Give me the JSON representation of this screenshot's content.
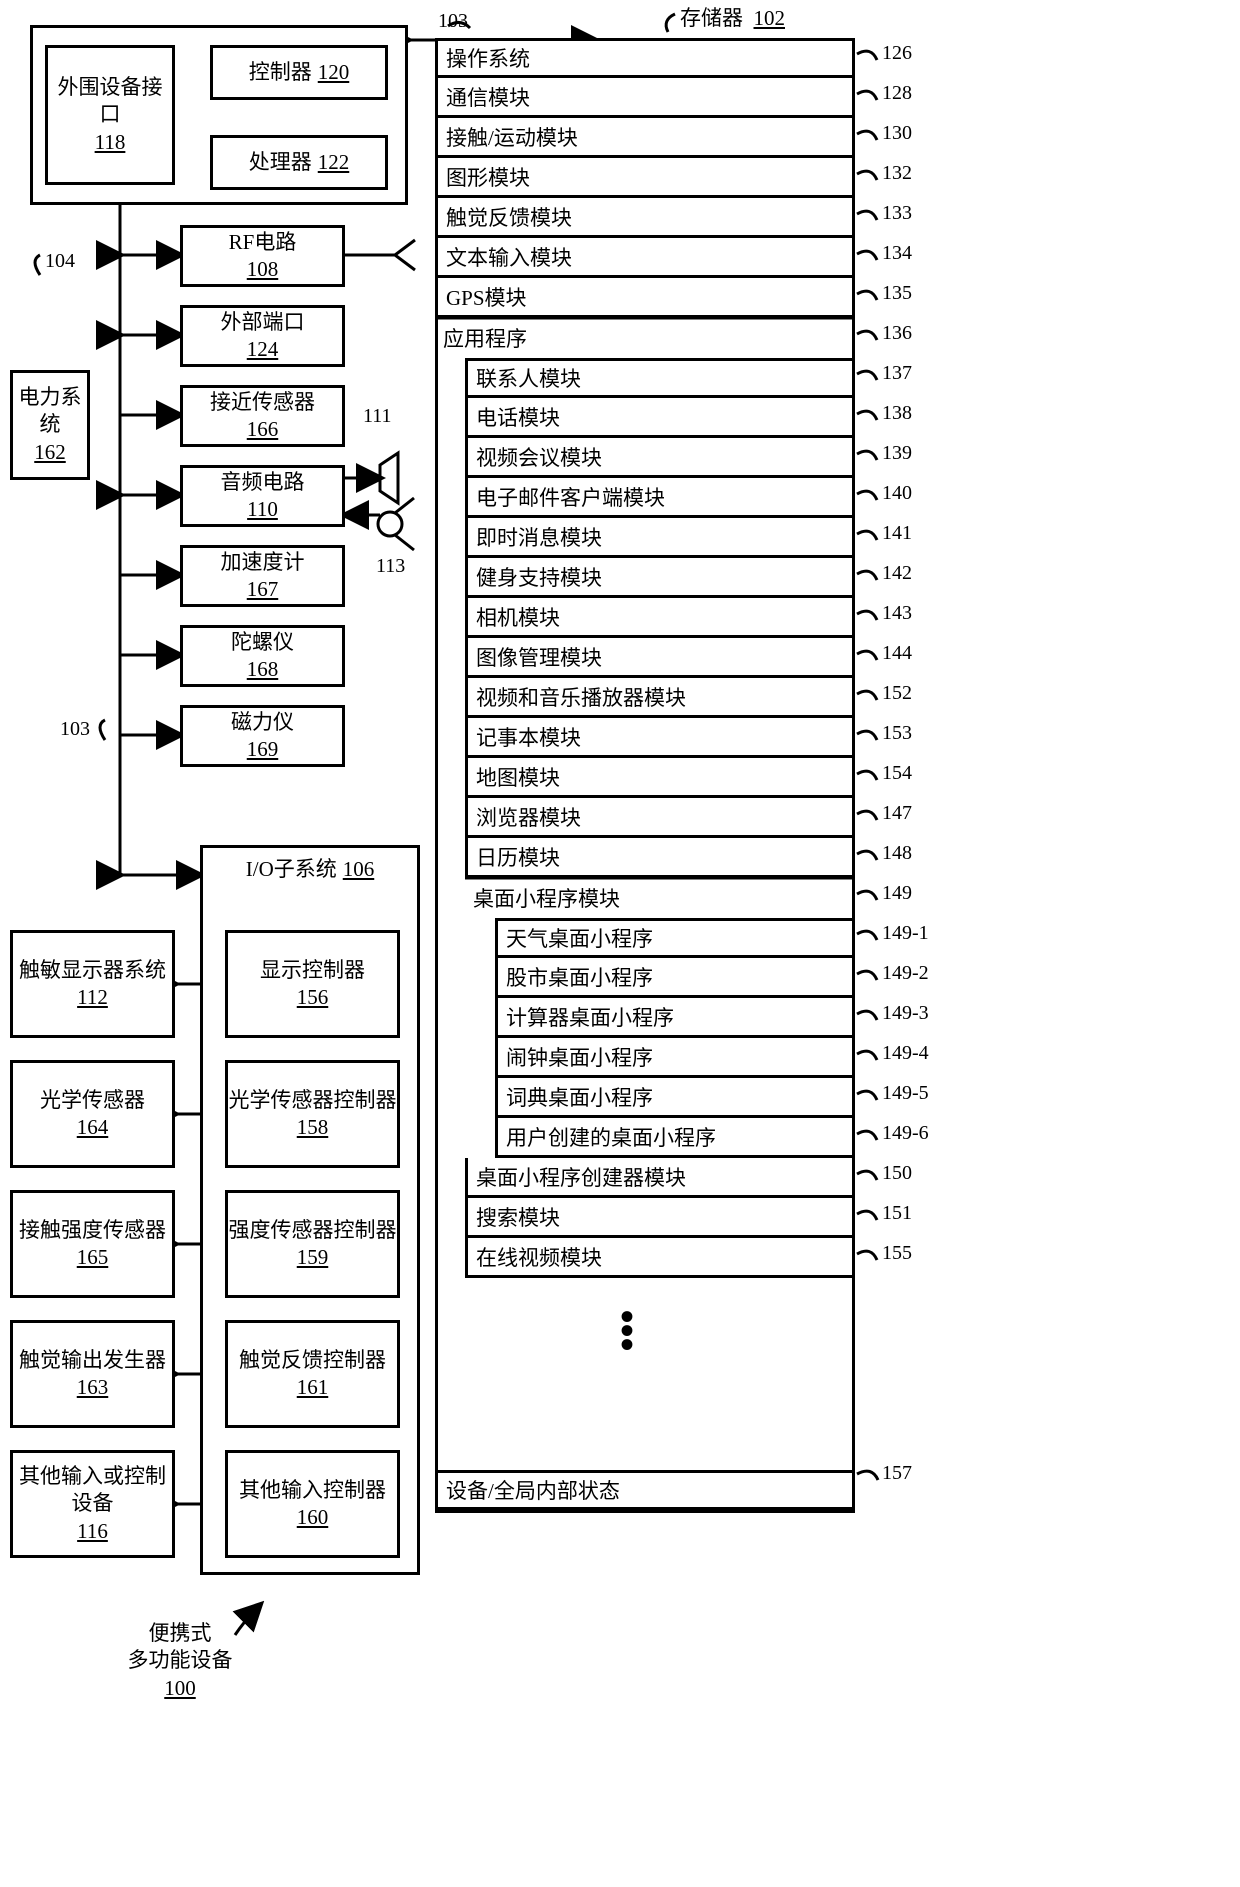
{
  "title": {
    "line1": "便携式",
    "line2": "多功能设备",
    "num": "100"
  },
  "top_left_group": {
    "outer_num": "104",
    "bus_label": "103",
    "peripheral": {
      "label": "外围设备接口",
      "num": "118"
    },
    "controller": {
      "label": "控制器",
      "num": "120"
    },
    "processor": {
      "label": "处理器",
      "num": "122"
    }
  },
  "power": {
    "label": "电力系统",
    "num": "162"
  },
  "stacked_blocks": [
    {
      "label": "RF电路",
      "num": "108"
    },
    {
      "label": "外部端口",
      "num": "124"
    },
    {
      "label": "接近传感器",
      "num": "166"
    },
    {
      "label": "音频电路",
      "num": "110"
    },
    {
      "label": "加速度计",
      "num": "167"
    },
    {
      "label": "陀螺仪",
      "num": "168"
    },
    {
      "label": "磁力仪",
      "num": "169"
    }
  ],
  "audio_refs": {
    "speaker": "111",
    "mic": "113"
  },
  "io_subsystem": {
    "label": "I/O子系统",
    "num": "106"
  },
  "io_left": [
    {
      "label": "触敏显示器系统",
      "num": "112"
    },
    {
      "label": "光学传感器",
      "num": "164"
    },
    {
      "label": "接触强度传感器",
      "num": "165"
    },
    {
      "label": "触觉输出发生器",
      "num": "163"
    },
    {
      "label": "其他输入或控制设备",
      "num": "116"
    }
  ],
  "io_right": [
    {
      "label": "显示控制器",
      "num": "156"
    },
    {
      "label": "光学传感器控制器",
      "num": "158"
    },
    {
      "label": "强度传感器控制器",
      "num": "159"
    },
    {
      "label": "触觉反馈控制器",
      "num": "161"
    },
    {
      "label": "其他输入控制器",
      "num": "160"
    }
  ],
  "memory": {
    "title": "存储器",
    "title_num": "102",
    "top_bus": "103",
    "rows": [
      {
        "text": "操作系统",
        "ref": "126",
        "indent": 0
      },
      {
        "text": "通信模块",
        "ref": "128",
        "indent": 0
      },
      {
        "text": "接触/运动模块",
        "ref": "130",
        "indent": 0
      },
      {
        "text": "图形模块",
        "ref": "132",
        "indent": 0
      },
      {
        "text": "触觉反馈模块",
        "ref": "133",
        "indent": 0
      },
      {
        "text": "文本输入模块",
        "ref": "134",
        "indent": 0
      },
      {
        "text": "GPS模块",
        "ref": "135",
        "indent": 0
      },
      {
        "text": "应用程序",
        "ref": "136",
        "indent": 0,
        "header": true
      },
      {
        "text": "联系人模块",
        "ref": "137",
        "indent": 1
      },
      {
        "text": "电话模块",
        "ref": "138",
        "indent": 1
      },
      {
        "text": "视频会议模块",
        "ref": "139",
        "indent": 1
      },
      {
        "text": "电子邮件客户端模块",
        "ref": "140",
        "indent": 1
      },
      {
        "text": "即时消息模块",
        "ref": "141",
        "indent": 1
      },
      {
        "text": "健身支持模块",
        "ref": "142",
        "indent": 1
      },
      {
        "text": "相机模块",
        "ref": "143",
        "indent": 1
      },
      {
        "text": "图像管理模块",
        "ref": "144",
        "indent": 1
      },
      {
        "text": "视频和音乐播放器模块",
        "ref": "152",
        "indent": 1
      },
      {
        "text": "记事本模块",
        "ref": "153",
        "indent": 1
      },
      {
        "text": "地图模块",
        "ref": "154",
        "indent": 1
      },
      {
        "text": "浏览器模块",
        "ref": "147",
        "indent": 1
      },
      {
        "text": "日历模块",
        "ref": "148",
        "indent": 1
      },
      {
        "text": "桌面小程序模块",
        "ref": "149",
        "indent": 1,
        "header": true
      },
      {
        "text": "天气桌面小程序",
        "ref": "149-1",
        "indent": 2
      },
      {
        "text": "股市桌面小程序",
        "ref": "149-2",
        "indent": 2
      },
      {
        "text": "计算器桌面小程序",
        "ref": "149-3",
        "indent": 2
      },
      {
        "text": "闹钟桌面小程序",
        "ref": "149-4",
        "indent": 2
      },
      {
        "text": "词典桌面小程序",
        "ref": "149-5",
        "indent": 2
      },
      {
        "text": "用户创建的桌面小程序",
        "ref": "149-6",
        "indent": 2
      },
      {
        "text": "桌面小程序创建器模块",
        "ref": "150",
        "indent": 1
      },
      {
        "text": "搜索模块",
        "ref": "151",
        "indent": 1
      },
      {
        "text": "在线视频模块",
        "ref": "155",
        "indent": 1
      }
    ],
    "bottom_row": {
      "text": "设备/全局内部状态",
      "ref": "157"
    }
  },
  "style": {
    "border_color": "#000000",
    "border_width": 3,
    "bg_color": "#ffffff",
    "font_size": 21
  }
}
